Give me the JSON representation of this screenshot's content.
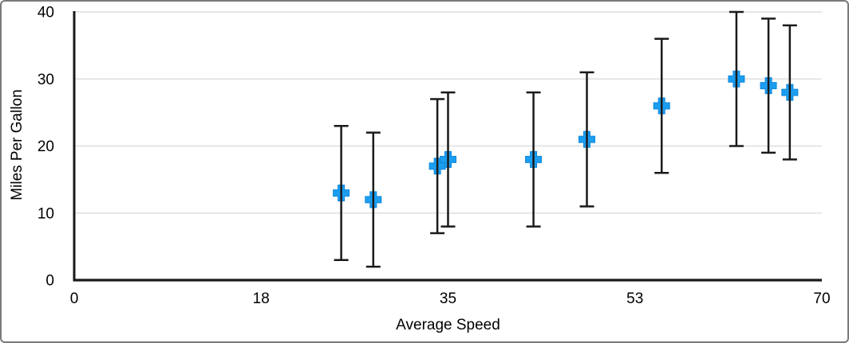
{
  "chart_data": {
    "type": "scatter",
    "title": "",
    "xlabel": "Average Speed",
    "ylabel": "Miles Per Gallon",
    "xlim": [
      0,
      70
    ],
    "ylim": [
      0,
      40
    ],
    "grid": "horizontal",
    "legend": "none",
    "x_ticks": [
      {
        "value": 0,
        "label": "0"
      },
      {
        "value": 17.5,
        "label": "18"
      },
      {
        "value": 35,
        "label": "35"
      },
      {
        "value": 52.5,
        "label": "53"
      },
      {
        "value": 70,
        "label": "70"
      }
    ],
    "y_ticks": [
      {
        "value": 0,
        "label": "0"
      },
      {
        "value": 10,
        "label": "10"
      },
      {
        "value": 20,
        "label": "20"
      },
      {
        "value": 30,
        "label": "30"
      },
      {
        "value": 40,
        "label": "40"
      }
    ],
    "series": [
      {
        "name": "Miles Per Gallon",
        "marker_shape": "plus",
        "points": [
          {
            "x": 25,
            "y": 13,
            "error_plus": 10,
            "error_minus": 10
          },
          {
            "x": 28,
            "y": 12,
            "error_plus": 10,
            "error_minus": 10
          },
          {
            "x": 34,
            "y": 17,
            "error_plus": 10,
            "error_minus": 10
          },
          {
            "x": 35,
            "y": 18,
            "error_plus": 10,
            "error_minus": 10
          },
          {
            "x": 43,
            "y": 18,
            "error_plus": 10,
            "error_minus": 10
          },
          {
            "x": 48,
            "y": 21,
            "error_plus": 10,
            "error_minus": 10
          },
          {
            "x": 55,
            "y": 26,
            "error_plus": 10,
            "error_minus": 10
          },
          {
            "x": 62,
            "y": 30,
            "error_plus": 10,
            "error_minus": 10
          },
          {
            "x": 65,
            "y": 29,
            "error_plus": 10,
            "error_minus": 10
          },
          {
            "x": 67,
            "y": 28,
            "error_plus": 10,
            "error_minus": 10
          }
        ]
      }
    ],
    "colors": {
      "marker_fill": "#1C9EF0",
      "marker_edge": "#0E87DC",
      "error_bar": "#1A1A1A",
      "axis_line": "#1A1A1A",
      "gridline": "#E2E2E2",
      "text": "#000000",
      "background": "#FFFFFF",
      "frame_border": "#7A7A7A"
    }
  }
}
